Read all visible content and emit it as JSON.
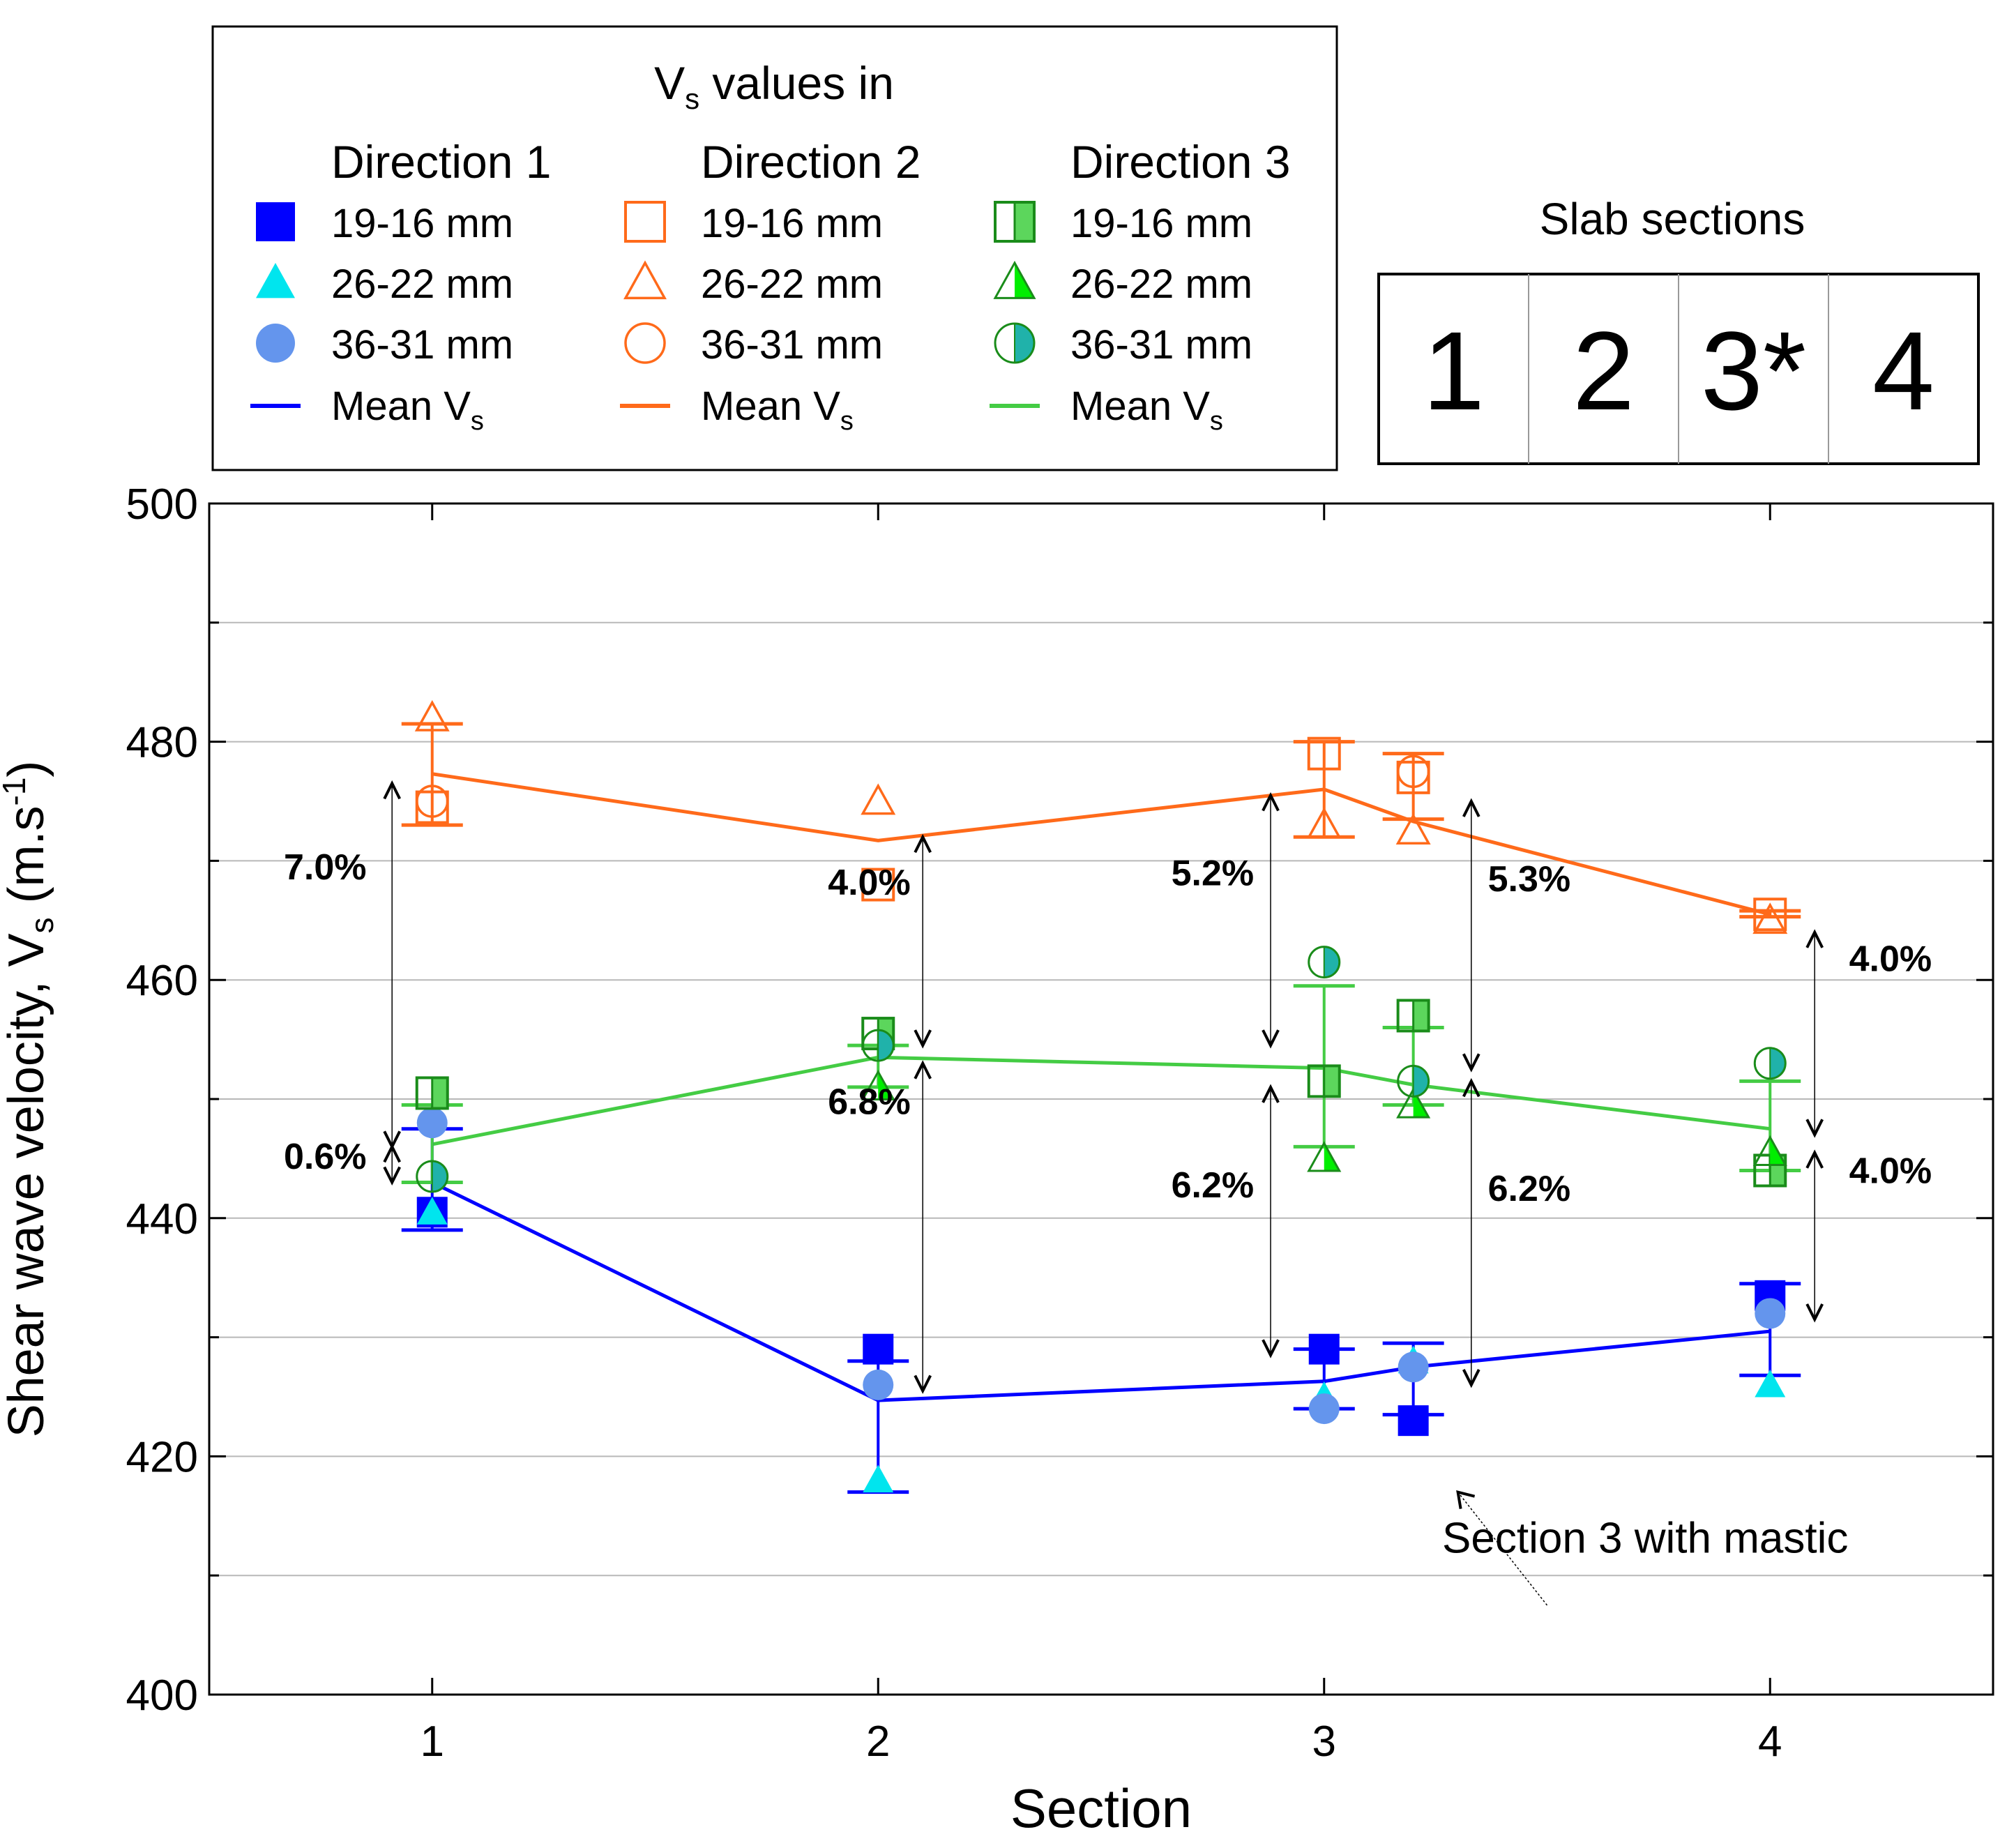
{
  "chart_data": {
    "type": "scatter",
    "title": "",
    "xlabel": "Section",
    "ylabel_main": "Shear wave velocity, V",
    "ylabel_sub": "s",
    "ylabel_unit_a": " (m.s",
    "ylabel_unit_sup": "-1",
    "ylabel_unit_b": ")",
    "xlim": [
      0.5,
      4.5
    ],
    "ylim": [
      400,
      500
    ],
    "x_ticks": [
      1,
      2,
      3,
      4
    ],
    "x_tick_labels": [
      "1",
      "2",
      "3",
      "4"
    ],
    "y_ticks": [
      400,
      420,
      440,
      460,
      480,
      500
    ],
    "y_tick_labels": [
      "400",
      "420",
      "440",
      "460",
      "480",
      "500"
    ],
    "y_minor_ticks": [
      410,
      430,
      450,
      470,
      490
    ],
    "grid": true,
    "colors": {
      "dir1": "#0000ff",
      "dir1_tri": "#00e5ee",
      "dir1_circle": "#6495ed",
      "dir1_line": "#0000ff",
      "dir2": "#ff6a1a",
      "dir2_line": "#ff6a1a",
      "dir3_dark": "#1a8c1a",
      "dir3_light": "#5cd65c",
      "dir3_bright": "#00ee00",
      "dir3_teal": "#20b2aa",
      "dir3_line": "#44cc44",
      "annotation": "#000000"
    },
    "series": [
      {
        "name": "Direction 1 19-16 mm",
        "direction": 1,
        "marker": "square-filled",
        "x": [
          1,
          2,
          3,
          3.2,
          4
        ],
        "y": [
          440.5,
          429,
          429,
          423,
          433.5
        ]
      },
      {
        "name": "Direction 1 26-22 mm",
        "direction": 1,
        "marker": "triangle-filled",
        "x": [
          1,
          2,
          3,
          3.2,
          4
        ],
        "y": [
          440.5,
          418,
          425,
          428,
          426
        ]
      },
      {
        "name": "Direction 1 36-31 mm",
        "direction": 1,
        "marker": "circle-filled",
        "x": [
          1,
          2,
          3,
          3.2,
          4
        ],
        "y": [
          448,
          426,
          424,
          427.5,
          432
        ]
      },
      {
        "name": "Direction 2 19-16 mm",
        "direction": 2,
        "marker": "square-open",
        "x": [
          1,
          2,
          3,
          3.2,
          4
        ],
        "y": [
          474.5,
          468,
          479,
          477,
          465.5
        ]
      },
      {
        "name": "Direction 2 26-22 mm",
        "direction": 2,
        "marker": "triangle-open",
        "x": [
          1,
          2,
          3,
          3.2,
          4
        ],
        "y": [
          482,
          475,
          473,
          472.5,
          465
        ]
      },
      {
        "name": "Direction 2 36-31 mm",
        "direction": 2,
        "marker": "circle-open",
        "x": [
          1,
          3.2
        ],
        "y": [
          475,
          477.5
        ]
      },
      {
        "name": "Direction 3 19-16 mm",
        "direction": 3,
        "marker": "square-half",
        "x": [
          1,
          2,
          3,
          3.2,
          4
        ],
        "y": [
          450.5,
          455.5,
          451.5,
          457,
          444
        ]
      },
      {
        "name": "Direction 3 26-22 mm",
        "direction": 3,
        "marker": "triangle-half",
        "x": [
          2,
          3,
          3.2,
          4
        ],
        "y": [
          451,
          445,
          449.5,
          445.5
        ]
      },
      {
        "name": "Direction 3 36-31 mm",
        "direction": 3,
        "marker": "circle-half",
        "x": [
          1,
          2,
          3,
          3.2,
          4
        ],
        "y": [
          443.5,
          454.5,
          461.5,
          451.5,
          453
        ]
      }
    ],
    "mean_lines": [
      {
        "name": "Mean Vs Direction 1",
        "direction": 1,
        "x": [
          1,
          2,
          3,
          3.2,
          4
        ],
        "y": [
          443,
          424.7,
          426.3,
          427.5,
          430.5
        ]
      },
      {
        "name": "Mean Vs Direction 2",
        "direction": 2,
        "x": [
          1,
          2,
          3,
          3.2,
          4
        ],
        "y": [
          477.3,
          471.7,
          476,
          473.3,
          465.5
        ]
      },
      {
        "name": "Mean Vs Direction 3",
        "direction": 3,
        "x": [
          1,
          2,
          3,
          3.2,
          4
        ],
        "y": [
          446.2,
          453.5,
          452.6,
          451.2,
          447.5
        ]
      }
    ],
    "error_bars": [
      {
        "direction": 1,
        "x": 1,
        "low": 439,
        "high": 447.5
      },
      {
        "direction": 1,
        "x": 2,
        "low": 417,
        "high": 428
      },
      {
        "direction": 1,
        "x": 3,
        "low": 424,
        "high": 429
      },
      {
        "direction": 1,
        "x": 3.2,
        "low": 423.5,
        "high": 429.5
      },
      {
        "direction": 1,
        "x": 4,
        "low": 426.8,
        "high": 434.5
      },
      {
        "direction": 2,
        "x": 1,
        "low": 473,
        "high": 481.5
      },
      {
        "direction": 2,
        "x": 3,
        "low": 472,
        "high": 480
      },
      {
        "direction": 2,
        "x": 3.2,
        "low": 473.5,
        "high": 479
      },
      {
        "direction": 2,
        "x": 4,
        "low": 465.3,
        "high": 465.8
      },
      {
        "direction": 3,
        "x": 1,
        "low": 443,
        "high": 449.5
      },
      {
        "direction": 3,
        "x": 2,
        "low": 451,
        "high": 454.5
      },
      {
        "direction": 3,
        "x": 3,
        "low": 446,
        "high": 459.5
      },
      {
        "direction": 3,
        "x": 3.2,
        "low": 449.5,
        "high": 456
      },
      {
        "direction": 3,
        "x": 4,
        "low": 444,
        "high": 451.5
      }
    ],
    "difference_annotations": [
      {
        "label": "7.0%",
        "arrow_x": 0.91,
        "y_from": 476.5,
        "y_to": 446,
        "label_x": 0.76,
        "label_y": 469.5
      },
      {
        "label": "0.6%",
        "arrow_x": 0.91,
        "y_from": 446,
        "y_to": 443,
        "label_x": 0.76,
        "label_y": 445.2
      },
      {
        "label": "4.0%",
        "arrow_x": 2.1,
        "y_from": 472,
        "y_to": 454.5,
        "label_x": 1.98,
        "label_y": 468.2
      },
      {
        "label": "6.8%",
        "arrow_x": 2.1,
        "y_from": 453,
        "y_to": 425.5,
        "label_x": 1.98,
        "label_y": 449.8
      },
      {
        "label": "5.2%",
        "arrow_x": 2.88,
        "y_from": 475.5,
        "y_to": 454.5,
        "label_x": 2.75,
        "label_y": 469.0
      },
      {
        "label": "6.2%",
        "arrow_x": 2.88,
        "y_from": 451,
        "y_to": 428.5,
        "label_x": 2.75,
        "label_y": 442.8
      },
      {
        "label": "5.3%",
        "arrow_x": 3.33,
        "y_from": 475,
        "y_to": 452.5,
        "label_x": 3.46,
        "label_y": 468.5
      },
      {
        "label": "6.2%",
        "arrow_x": 3.33,
        "y_from": 451.5,
        "y_to": 426,
        "label_x": 3.46,
        "label_y": 442.5
      },
      {
        "label": "4.0%",
        "arrow_x": 4.1,
        "y_from": 464,
        "y_to": 447,
        "label_x": 4.27,
        "label_y": 461.8
      },
      {
        "label": "4.0%",
        "arrow_x": 4.1,
        "y_from": 445.5,
        "y_to": 431.5,
        "label_x": 4.27,
        "label_y": 444.0
      }
    ],
    "callout": {
      "label": "Section 3 with mastic",
      "text_x": 3.72,
      "text_y": 413.2,
      "arrow_from_x": 3.5,
      "arrow_from_y": 407.5,
      "arrow_to_x": 3.3,
      "arrow_to_y": 417
    },
    "legend": {
      "placement": "top-left",
      "title_main": "V",
      "title_sub": "s",
      "title_rest": " values in",
      "columns": [
        {
          "header": "Direction 1",
          "direction": 1,
          "items": [
            {
              "marker": "square-filled",
              "label": "19-16 mm"
            },
            {
              "marker": "triangle-filled",
              "label": "26-22 mm"
            },
            {
              "marker": "circle-filled",
              "label": "36-31 mm"
            },
            {
              "marker": "line",
              "label": "Mean V",
              "label_sub": "s"
            }
          ]
        },
        {
          "header": "Direction 2",
          "direction": 2,
          "items": [
            {
              "marker": "square-open",
              "label": "19-16 mm"
            },
            {
              "marker": "triangle-open",
              "label": "26-22 mm"
            },
            {
              "marker": "circle-open",
              "label": "36-31 mm"
            },
            {
              "marker": "line",
              "label": "Mean V",
              "label_sub": "s"
            }
          ]
        },
        {
          "header": "Direction 3",
          "direction": 3,
          "items": [
            {
              "marker": "square-half",
              "label": "19-16 mm"
            },
            {
              "marker": "triangle-half",
              "label": "26-22 mm"
            },
            {
              "marker": "circle-half",
              "label": "36-31 mm"
            },
            {
              "marker": "line",
              "label": "Mean V",
              "label_sub": "s"
            }
          ]
        }
      ]
    },
    "slab_sections": {
      "title": "Slab sections",
      "cells": [
        "1",
        "2",
        "3*",
        "4"
      ]
    }
  }
}
